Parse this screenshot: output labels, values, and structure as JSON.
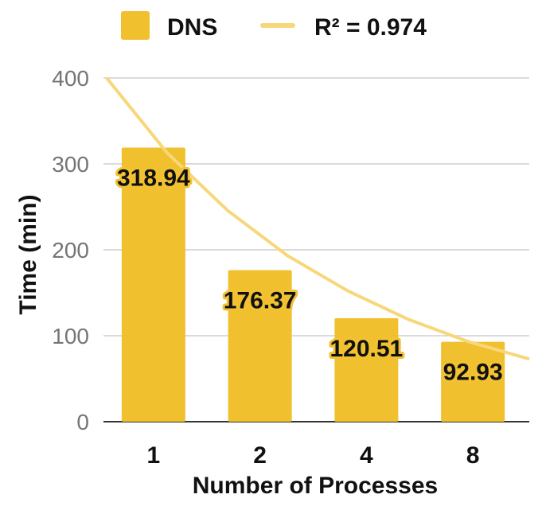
{
  "chart_data": {
    "type": "bar",
    "categories": [
      "1",
      "2",
      "4",
      "8"
    ],
    "series": [
      {
        "name": "DNS",
        "values": [
          318.94,
          176.37,
          120.51,
          92.93
        ],
        "color": "#f0c02f"
      }
    ],
    "trendline": {
      "name": "R² = 0.974",
      "type": "exponential",
      "color": "#f7d77a",
      "points": [
        [
          1,
          400
        ],
        [
          2,
          313
        ],
        [
          3,
          246
        ],
        [
          4,
          193
        ],
        [
          5,
          152
        ],
        [
          6,
          119
        ],
        [
          7,
          93
        ],
        [
          8,
          73
        ]
      ]
    },
    "data_labels": [
      "318.94",
      "176.37",
      "120.51",
      "92.93"
    ],
    "xlabel": "Number of Processes",
    "ylabel": "Time (min)",
    "ylim": [
      0,
      400
    ],
    "yticks": [
      0,
      100,
      200,
      300,
      400
    ],
    "grid": true,
    "legend_position": "top"
  }
}
